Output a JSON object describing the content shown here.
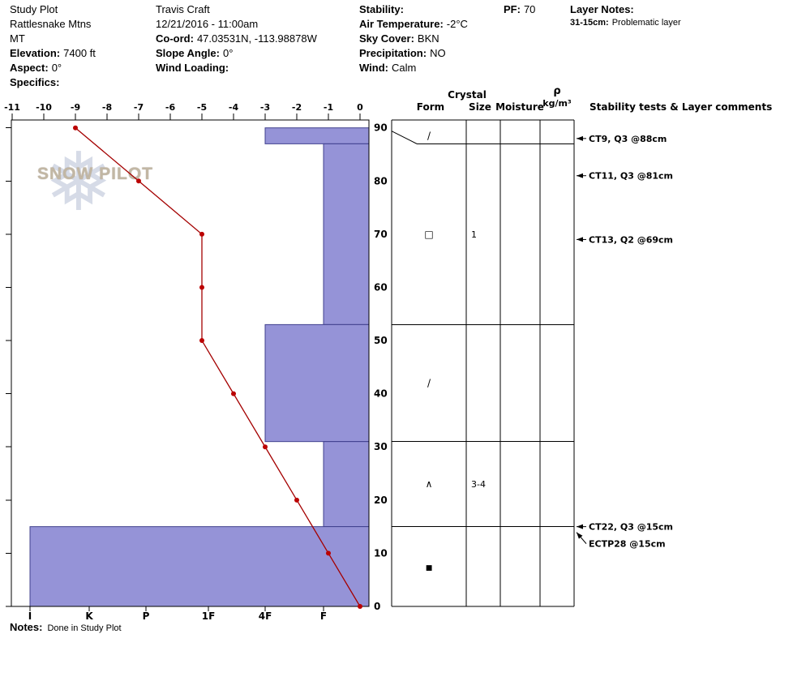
{
  "header": {
    "site": {
      "line1": "Study Plot",
      "line2": "Rattlesnake Mtns",
      "line3": "MT",
      "elevation_label": "Elevation:",
      "elevation_value": "7400 ft",
      "aspect_label": "Aspect:",
      "aspect_value": "0°",
      "specifics_label": "Specifics:"
    },
    "observer": {
      "name": "Travis  Craft",
      "datetime": "12/21/2016 - 11:00am",
      "coord_label": "Co-ord:",
      "coord_value": "47.03531N, -113.98878W",
      "slope_label": "Slope Angle:",
      "slope_value": "0°",
      "wind_loading_label": "Wind Loading:"
    },
    "conditions": {
      "stability_label": "Stability:",
      "stability_value": "",
      "air_temp_label": "Air Temperature:",
      "air_temp_value": "-2°C",
      "sky_label": "Sky Cover:",
      "sky_value": "BKN",
      "precip_label": "Precipitation:",
      "precip_value": "NO",
      "wind_label": "Wind:",
      "wind_value": "Calm"
    },
    "pf": {
      "label": "PF:",
      "value": "70"
    },
    "layer_notes": {
      "label": "Layer Notes:",
      "entry_depth": "31-15cm:",
      "entry_text": "Problematic layer"
    }
  },
  "logo": {
    "text": "SNOW PILOT",
    "snowflake_icon": "❅"
  },
  "notes": {
    "label": "Notes:",
    "value": "Done in Study Plot"
  },
  "chart_data": {
    "type": "line",
    "description": "Snow pit profile: hand-hardness layer bars and snow temperature line vs height above ground (cm)",
    "depth_axis": {
      "ticks": [
        0,
        10,
        20,
        30,
        40,
        50,
        60,
        70,
        80,
        90
      ],
      "range": [
        0,
        91.5
      ],
      "side": "right"
    },
    "temperature_axis": {
      "ticks": [
        -11,
        -10,
        -9,
        -8,
        -7,
        -6,
        -5,
        -4,
        -3,
        -2,
        -1,
        0
      ],
      "range": [
        -11.3,
        0
      ],
      "side": "top"
    },
    "hardness_axis": {
      "categories": [
        "I",
        "K",
        "P",
        "1F",
        "4F",
        "F"
      ],
      "side": "bottom"
    },
    "temperature_profile": {
      "depth_cm": [
        90,
        80,
        70,
        60,
        50,
        40,
        30,
        20,
        10,
        0
      ],
      "temp_c": [
        -9,
        -7,
        -5,
        -5,
        -5,
        -4,
        -3,
        -2,
        -1,
        0
      ]
    },
    "layers": [
      {
        "top_cm": 90,
        "bottom_cm": 87,
        "hardness": "4F",
        "form_symbol": "/",
        "size_mm": "",
        "moisture": ""
      },
      {
        "top_cm": 87,
        "bottom_cm": 53,
        "hardness": "F",
        "form_symbol": "□",
        "size_mm": "1",
        "moisture": ""
      },
      {
        "top_cm": 53,
        "bottom_cm": 31,
        "hardness": "4F",
        "form_symbol": "/",
        "size_mm": "",
        "moisture": ""
      },
      {
        "top_cm": 31,
        "bottom_cm": 15,
        "hardness": "F",
        "form_symbol": "∧",
        "size_mm": "3-4",
        "moisture": ""
      },
      {
        "top_cm": 15,
        "bottom_cm": 0,
        "hardness": "I",
        "form_symbol": "■",
        "size_mm": "",
        "moisture": ""
      }
    ],
    "colors": {
      "bar_fill": "#9593d7",
      "bar_stroke": "#40408e",
      "temp_line": "#a40000",
      "temp_dot": "#bb0000"
    }
  },
  "right_panel": {
    "headers": {
      "crystal": "Crystal",
      "form": "Form",
      "size": "Size",
      "moisture": "Moisture",
      "rho": "ρ",
      "rho_units": "kg/m³",
      "stability": "Stability tests & Layer comments"
    },
    "stability_tests": [
      {
        "text": "CT9, Q3 @88cm",
        "depth_cm": 88
      },
      {
        "text": "CT11, Q3 @81cm",
        "depth_cm": 81
      },
      {
        "text": "CT13, Q2 @69cm",
        "depth_cm": 69
      },
      {
        "text": "CT22, Q3 @15cm",
        "depth_cm": 15
      },
      {
        "text": "ECTP28 @15cm",
        "depth_cm": 15
      }
    ]
  }
}
